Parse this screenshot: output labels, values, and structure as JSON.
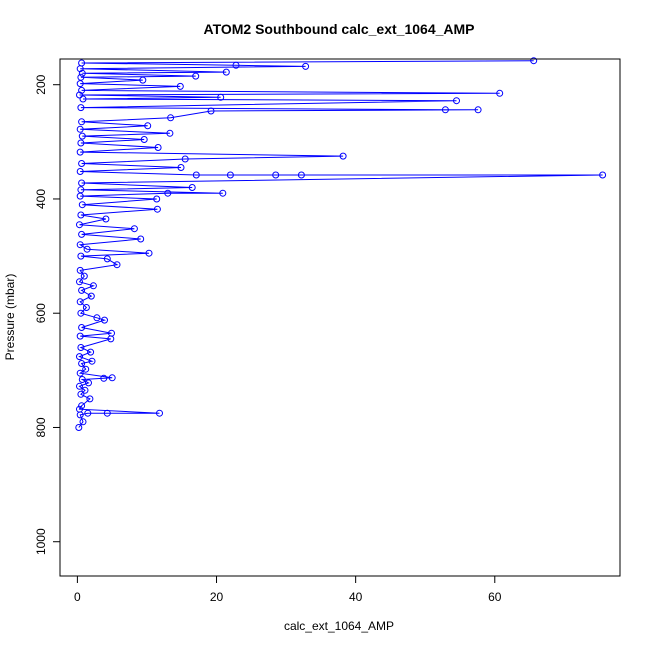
{
  "chart_data": {
    "type": "line",
    "title": "ATOM2 Southbound calc_ext_1064_AMP",
    "xlabel": "calc_ext_1064_AMP",
    "ylabel": "Pressure (mbar)",
    "x_axis": {
      "range": [
        -2.5,
        78
      ],
      "ticks": [
        0,
        20,
        40,
        60
      ]
    },
    "y_axis": {
      "range": [
        1060,
        155
      ],
      "reversed": true,
      "ticks": [
        200,
        400,
        600,
        800,
        1000
      ]
    },
    "grid": false,
    "legend": "none",
    "colors": {
      "series": "#0000ff",
      "axis": "#000000"
    },
    "series": [
      {
        "marker": "open-circle",
        "points": [
          [
            0.2,
            800
          ],
          [
            0.8,
            790
          ],
          [
            0.4,
            778
          ],
          [
            1.5,
            775
          ],
          [
            4.3,
            775
          ],
          [
            11.8,
            775
          ],
          [
            0.3,
            768
          ],
          [
            0.6,
            762
          ],
          [
            1.8,
            750
          ],
          [
            0.5,
            742
          ],
          [
            1.1,
            735
          ],
          [
            0.3,
            728
          ],
          [
            1.6,
            722
          ],
          [
            0.7,
            716
          ],
          [
            3.8,
            714
          ],
          [
            5.0,
            713
          ],
          [
            0.4,
            705
          ],
          [
            1.2,
            698
          ],
          [
            0.6,
            688
          ],
          [
            2.1,
            684
          ],
          [
            0.3,
            676
          ],
          [
            1.9,
            668
          ],
          [
            0.5,
            660
          ],
          [
            4.8,
            645
          ],
          [
            0.4,
            640
          ],
          [
            4.9,
            635
          ],
          [
            0.6,
            625
          ],
          [
            3.9,
            612
          ],
          [
            2.8,
            608
          ],
          [
            0.5,
            600
          ],
          [
            1.3,
            590
          ],
          [
            0.4,
            580
          ],
          [
            2.0,
            570
          ],
          [
            0.6,
            560
          ],
          [
            2.3,
            552
          ],
          [
            0.3,
            545
          ],
          [
            1.0,
            535
          ],
          [
            0.4,
            525
          ],
          [
            5.7,
            515
          ],
          [
            4.3,
            505
          ],
          [
            0.5,
            500
          ],
          [
            10.3,
            495
          ],
          [
            1.4,
            488
          ],
          [
            0.4,
            480
          ],
          [
            9.1,
            470
          ],
          [
            0.6,
            462
          ],
          [
            8.2,
            452
          ],
          [
            0.3,
            445
          ],
          [
            4.1,
            435
          ],
          [
            0.5,
            428
          ],
          [
            11.5,
            418
          ],
          [
            0.7,
            410
          ],
          [
            11.4,
            400
          ],
          [
            0.4,
            395
          ],
          [
            13.0,
            390
          ],
          [
            20.9,
            390
          ],
          [
            0.5,
            384
          ],
          [
            16.5,
            380
          ],
          [
            0.6,
            372
          ],
          [
            75.5,
            358
          ],
          [
            32.2,
            358
          ],
          [
            28.5,
            358
          ],
          [
            22.0,
            358
          ],
          [
            17.1,
            358
          ],
          [
            0.4,
            352
          ],
          [
            14.9,
            345
          ],
          [
            0.6,
            338
          ],
          [
            15.5,
            330
          ],
          [
            38.2,
            325
          ],
          [
            0.4,
            318
          ],
          [
            11.6,
            310
          ],
          [
            0.5,
            302
          ],
          [
            9.6,
            296
          ],
          [
            0.7,
            290
          ],
          [
            13.3,
            285
          ],
          [
            0.4,
            278
          ],
          [
            10.1,
            272
          ],
          [
            0.6,
            265
          ],
          [
            13.4,
            258
          ],
          [
            19.2,
            246
          ],
          [
            57.6,
            244
          ],
          [
            52.9,
            244
          ],
          [
            0.5,
            240
          ],
          [
            54.5,
            228
          ],
          [
            0.8,
            225
          ],
          [
            20.6,
            222
          ],
          [
            0.3,
            218
          ],
          [
            60.7,
            215
          ],
          [
            0.6,
            210
          ],
          [
            14.8,
            203
          ],
          [
            0.4,
            198
          ],
          [
            9.4,
            192
          ],
          [
            0.5,
            187
          ],
          [
            17.0,
            185
          ],
          [
            0.7,
            180
          ],
          [
            21.4,
            178
          ],
          [
            0.4,
            172
          ],
          [
            32.8,
            168
          ],
          [
            22.8,
            166
          ],
          [
            0.6,
            162
          ],
          [
            65.6,
            158
          ]
        ]
      }
    ]
  }
}
